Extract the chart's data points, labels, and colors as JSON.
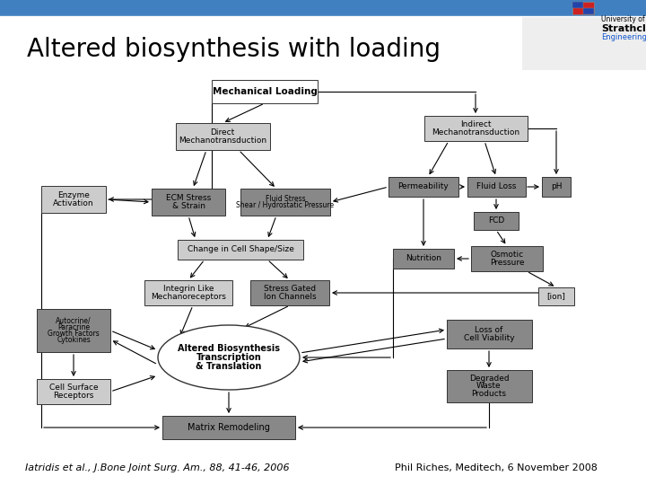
{
  "title": "Altered biosynthesis with loading",
  "title_fontsize": 20,
  "bg_color": "#ffffff",
  "header_color": "#4080c0",
  "citation_left": "Iatridis et al., J.Bone Joint Surg. Am., 88, 41-46, 2006",
  "citation_right": "Phil Riches, Meditech, 6 November 2008",
  "citation_fontsize": 8,
  "box_white": "#ffffff",
  "box_light": "#cccccc",
  "box_mid": "#aaaaaa",
  "box_dark": "#888888",
  "box_vdark": "#666666",
  "edge_color": "#333333"
}
